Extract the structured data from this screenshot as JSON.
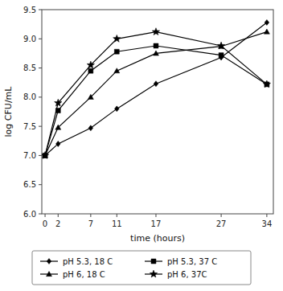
{
  "chart_data": {
    "type": "line",
    "xlabel": "time (hours)",
    "ylabel": "log CFU/mL",
    "xlim": [
      -0.5,
      35
    ],
    "ylim": [
      6,
      9.5
    ],
    "xticks": [
      0,
      2,
      7,
      11,
      17,
      27,
      34
    ],
    "yticks": [
      {
        "value": 6,
        "label": "6.0"
      },
      6.5,
      {
        "value": 7,
        "label": "7.0"
      },
      7.5,
      {
        "value": 8,
        "label": "8.0"
      },
      8.5,
      {
        "value": 9,
        "label": "9.0"
      },
      9.5
    ],
    "grid": false,
    "legend": "bottom",
    "series": [
      {
        "name": "pH 5.3, 18 C",
        "color": "#000000",
        "marker": "diamond",
        "line_style": "solid",
        "x": [
          0,
          2,
          7,
          11,
          17,
          27,
          34
        ],
        "values": [
          7.0,
          7.2,
          7.47,
          7.8,
          8.23,
          8.68,
          9.28
        ]
      },
      {
        "name": "pH 5.3, 37 C",
        "color": "#000000",
        "marker": "square",
        "line_style": "solid",
        "x": [
          0,
          2,
          7,
          11,
          17,
          27,
          34
        ],
        "values": [
          7.0,
          7.77,
          8.45,
          8.78,
          8.88,
          8.72,
          8.22
        ]
      },
      {
        "name": "pH 6, 18 C",
        "color": "#000000",
        "marker": "triangle",
        "line_style": "solid",
        "x": [
          0,
          2,
          7,
          11,
          17,
          27,
          34
        ],
        "values": [
          7.0,
          7.48,
          8.0,
          8.45,
          8.75,
          8.87,
          9.12
        ]
      },
      {
        "name": "pH 6, 37C",
        "color": "#000000",
        "marker": "star",
        "line_style": "solid",
        "x": [
          0,
          2,
          7,
          11,
          17,
          27,
          34
        ],
        "values": [
          7.0,
          7.9,
          8.55,
          9.0,
          9.12,
          8.88,
          8.22
        ]
      }
    ]
  }
}
